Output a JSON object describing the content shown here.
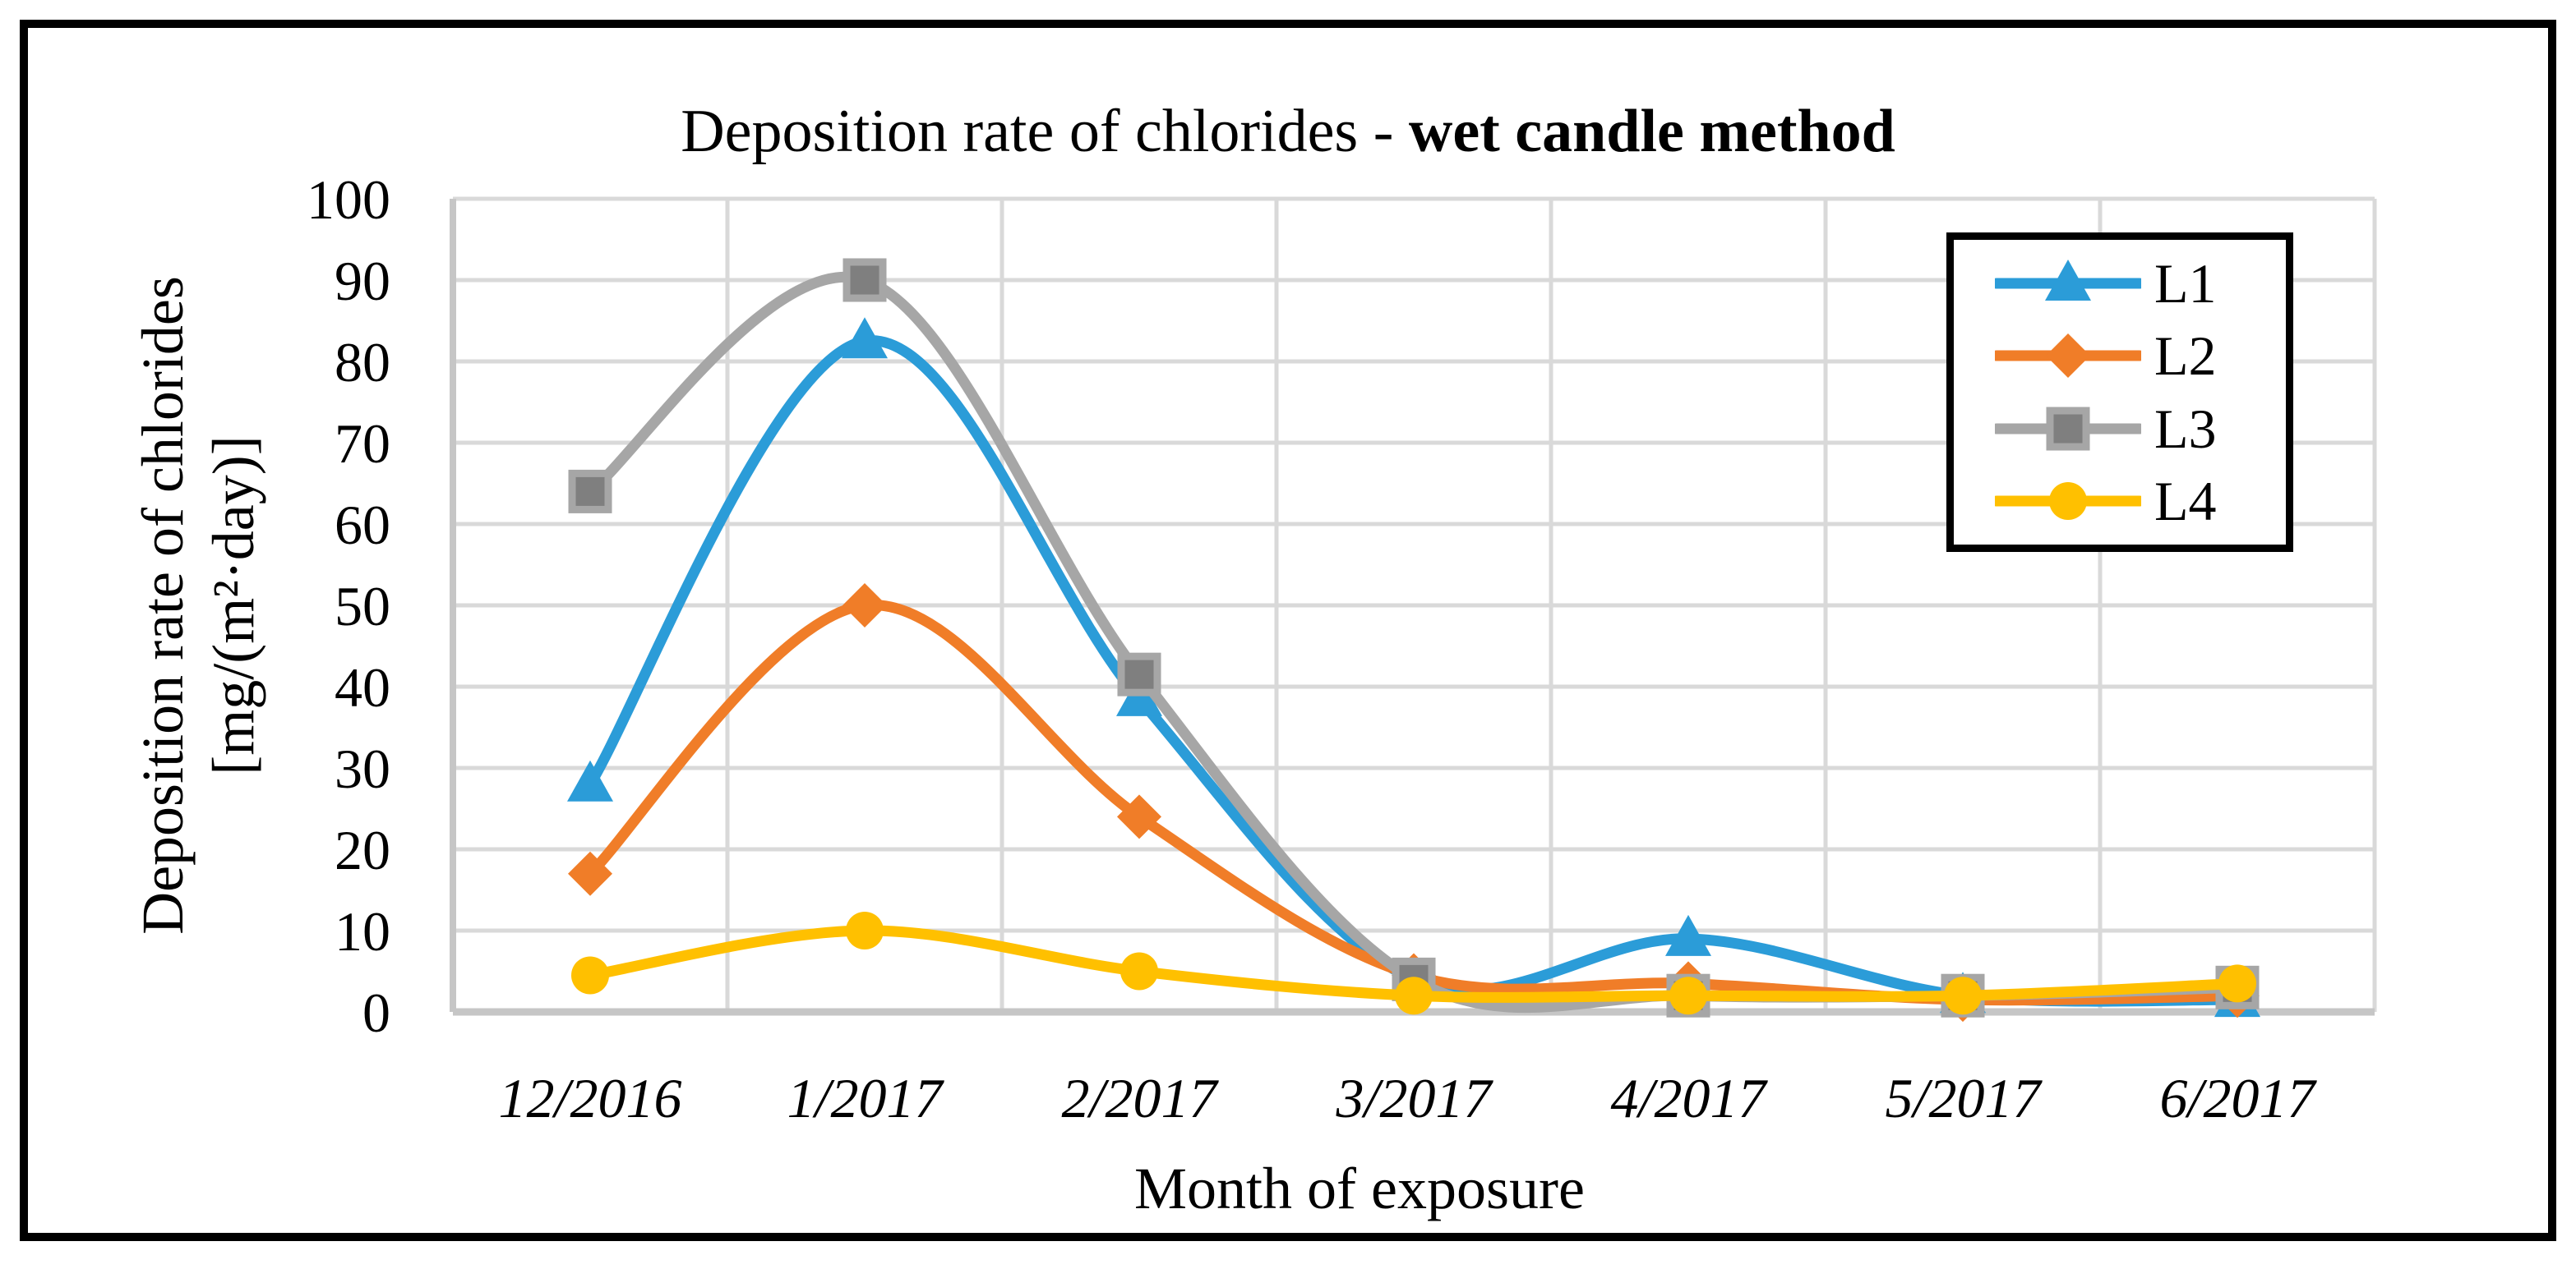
{
  "title": {
    "prefix": "Deposition rate of chlorides - ",
    "bold": "wet candle method"
  },
  "y_axis": {
    "title_line1": "Deposition rate of chlorides",
    "title_line2": "[mg/(m²·day)]"
  },
  "x_axis": {
    "title": "Month of exposure"
  },
  "colors": {
    "gridline": "#D9D9D9",
    "axis_line": "#C6C6C6",
    "frame": "#000000",
    "background": "#FFFFFF"
  },
  "chart_data": {
    "type": "line",
    "smooth": true,
    "title": "Deposition rate of chlorides - wet candle method",
    "xlabel": "Month of exposure",
    "ylabel": "Deposition rate of chlorides [mg/(m²·day)]",
    "categories": [
      "12/2016",
      "1/2017",
      "2/2017",
      "3/2017",
      "4/2017",
      "5/2017",
      "6/2017"
    ],
    "yticks": [
      "100",
      "90",
      "80",
      "70",
      "60",
      "50",
      "40",
      "30",
      "20",
      "10",
      "0"
    ],
    "ylim": [
      0,
      100
    ],
    "grid": true,
    "legend_position": "top-right",
    "series": [
      {
        "name": "L1",
        "color": "#2B9CD8",
        "marker": "triangle",
        "marker_fill": "#2B9CD8",
        "values": [
          28,
          82.5,
          38.5,
          4,
          9,
          2,
          1.5
        ]
      },
      {
        "name": "L2",
        "color": "#F07D28",
        "marker": "diamond",
        "marker_fill": "#F07D28",
        "values": [
          17,
          50,
          24,
          4.5,
          3.5,
          1.5,
          2
        ]
      },
      {
        "name": "L3",
        "color": "#A6A6A6",
        "marker": "square",
        "marker_fill": "#7F7F7F",
        "marker_stroke": "#A6A6A6",
        "values": [
          64,
          90,
          41.5,
          4,
          2,
          2,
          3
        ]
      },
      {
        "name": "L4",
        "color": "#FFC000",
        "marker": "circle",
        "marker_fill": "#FFC000",
        "values": [
          4.5,
          10,
          5,
          2,
          2,
          2,
          3.5
        ]
      }
    ]
  }
}
